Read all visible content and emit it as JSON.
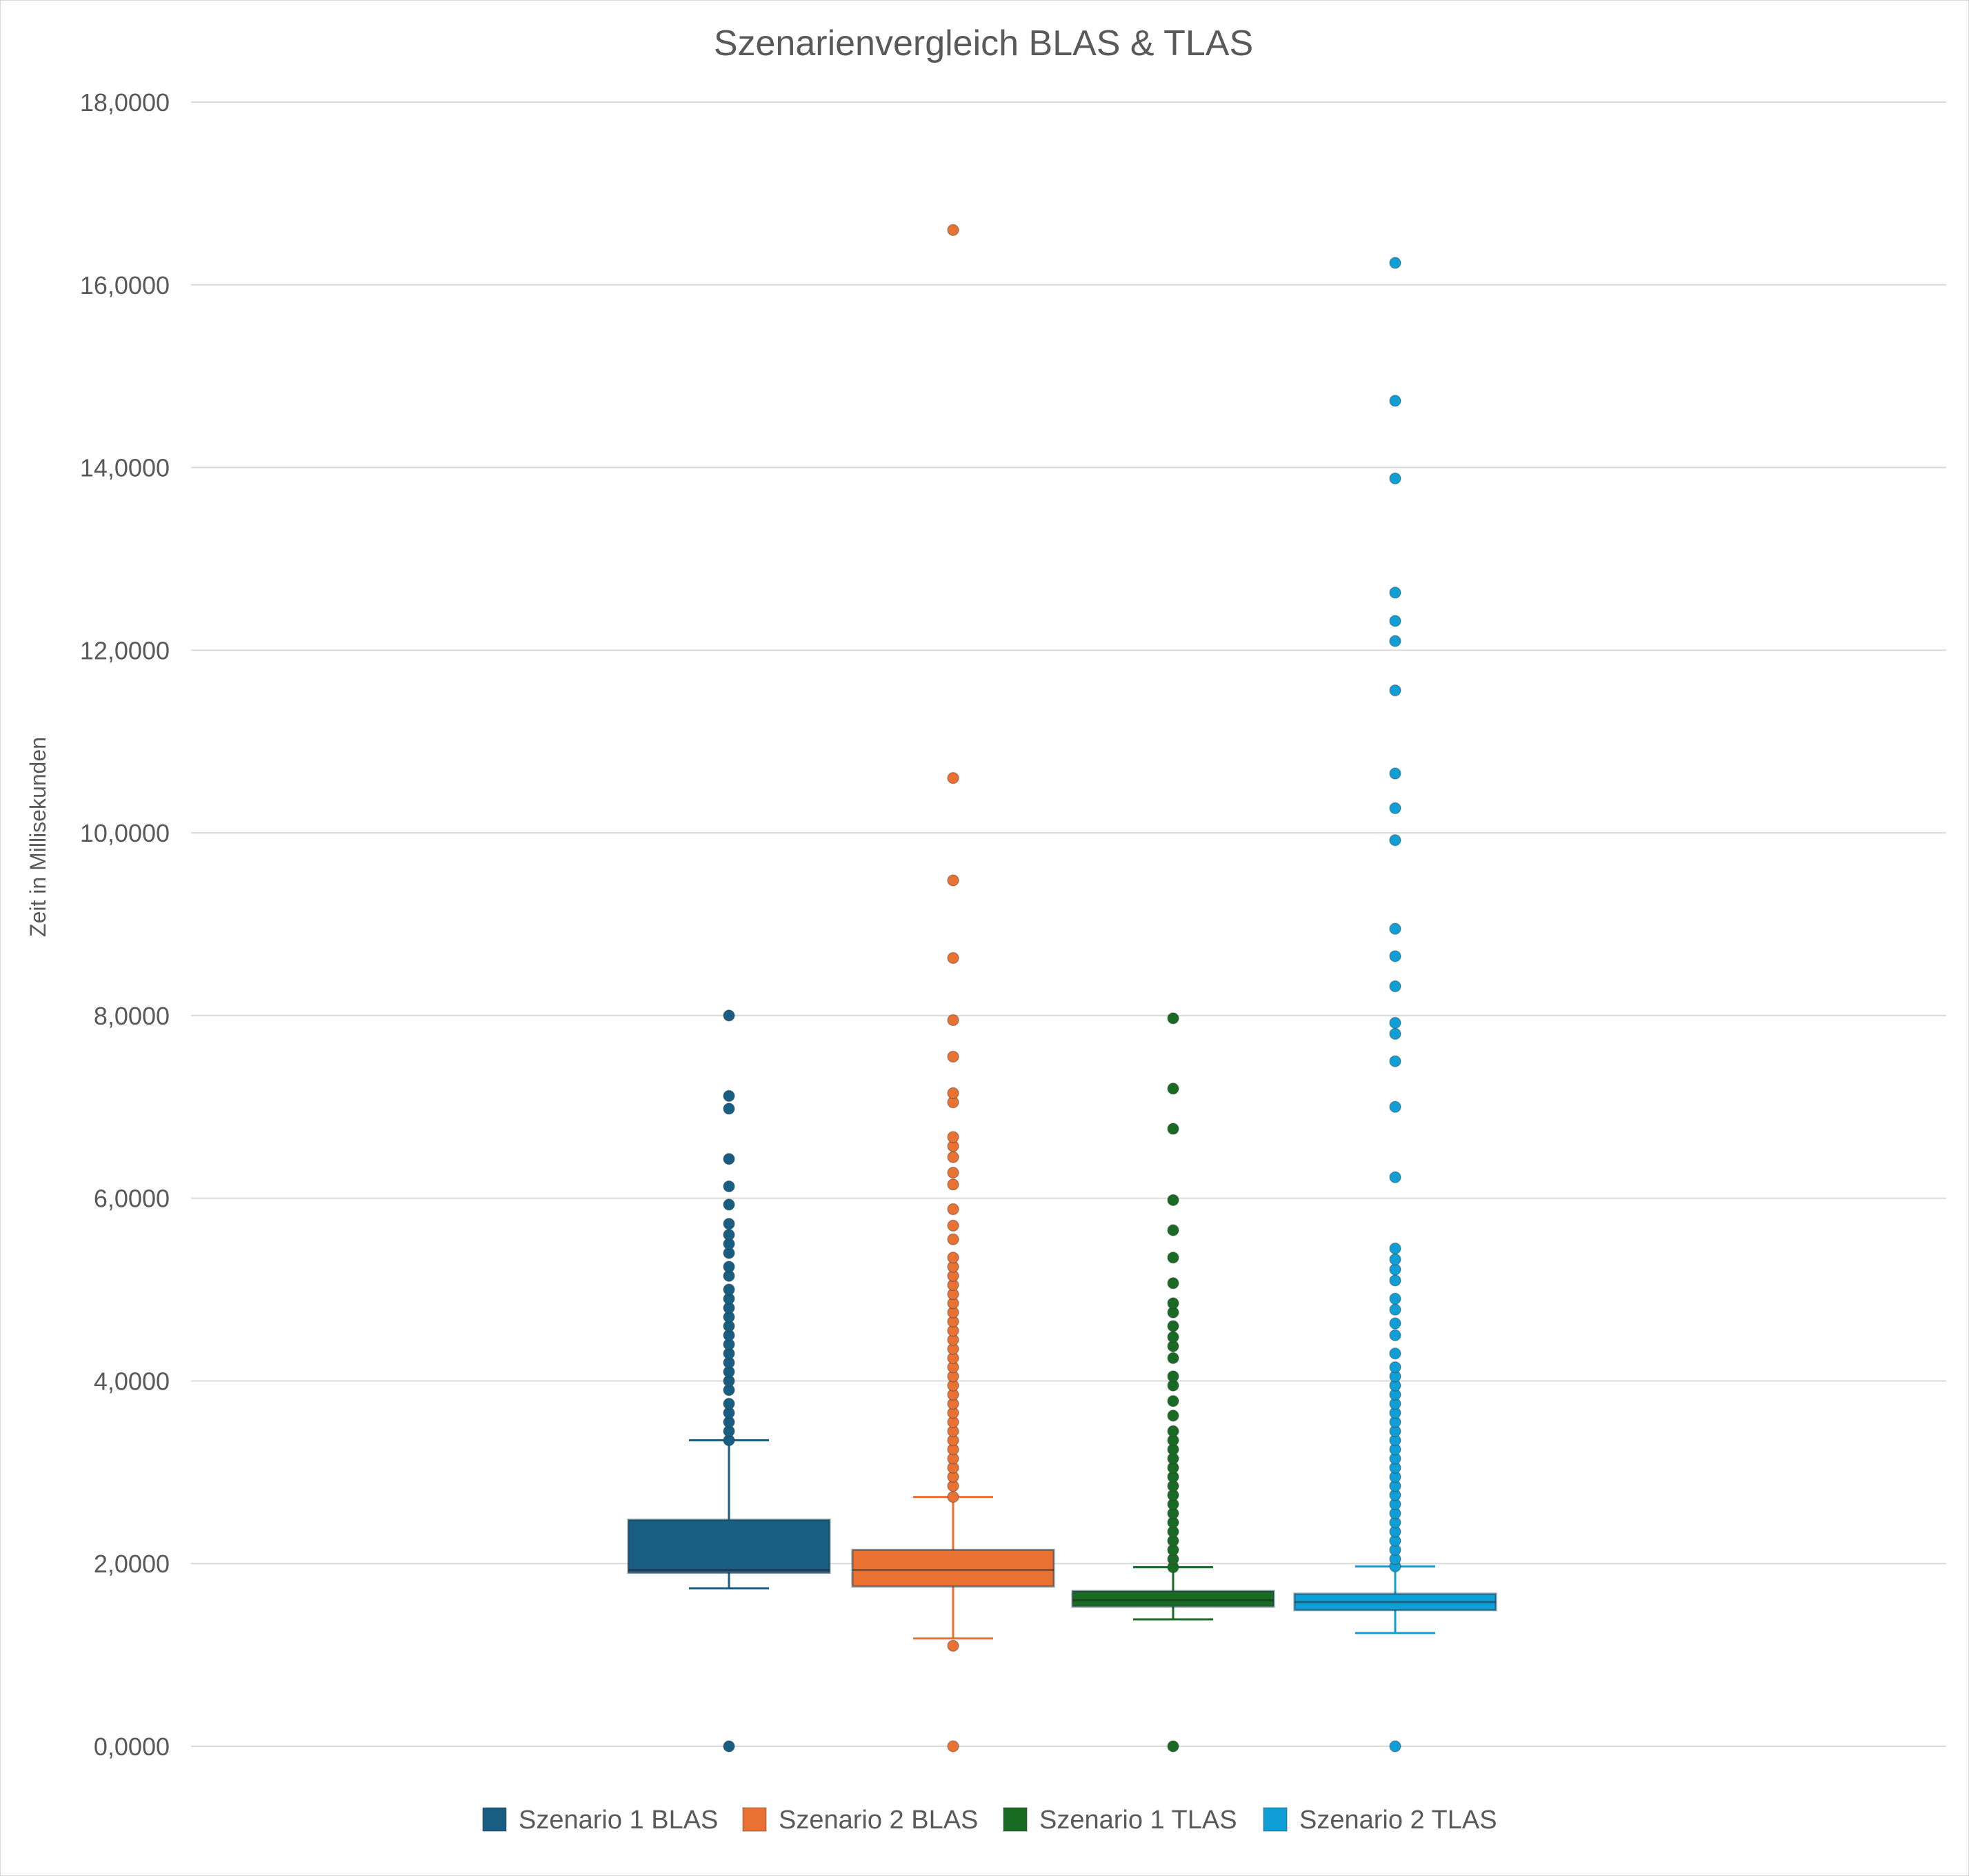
{
  "chart_data": {
    "type": "boxplot",
    "title": "Szenarienvergleich BLAS & TLAS",
    "xlabel": "",
    "ylabel": "Zeit in Millisekunden",
    "ylim": [
      0,
      18
    ],
    "yticks": [
      "0,0000",
      "2,0000",
      "4,0000",
      "6,0000",
      "8,0000",
      "10,0000",
      "12,0000",
      "14,0000",
      "16,0000",
      "18,0000"
    ],
    "ytick_values": [
      0,
      2,
      4,
      6,
      8,
      10,
      12,
      14,
      16,
      18
    ],
    "grid": true,
    "legend_position": "bottom",
    "series": [
      {
        "name": "Szenario 1 BLAS",
        "color": "#175E82",
        "whisker_low": 1.73,
        "q1": 1.9,
        "median": 1.93,
        "q3": 2.48,
        "whisker_high": 3.35,
        "outliers": [
          0.0,
          3.35,
          3.45,
          3.55,
          3.65,
          3.75,
          3.9,
          4.0,
          4.1,
          4.2,
          4.3,
          4.4,
          4.5,
          4.6,
          4.7,
          4.8,
          4.9,
          5.0,
          5.15,
          5.25,
          5.4,
          5.5,
          5.6,
          5.72,
          5.93,
          6.13,
          6.43,
          6.98,
          7.12,
          8.0
        ]
      },
      {
        "name": "Szenario 2 BLAS",
        "color": "#E97132",
        "whisker_low": 1.18,
        "q1": 1.75,
        "median": 1.93,
        "q3": 2.15,
        "whisker_high": 2.73,
        "outliers": [
          0.0,
          1.1,
          2.73,
          2.85,
          2.95,
          3.05,
          3.15,
          3.25,
          3.35,
          3.45,
          3.55,
          3.65,
          3.75,
          3.85,
          3.95,
          4.05,
          4.15,
          4.25,
          4.35,
          4.45,
          4.55,
          4.65,
          4.75,
          4.85,
          4.95,
          5.05,
          5.15,
          5.25,
          5.35,
          5.55,
          5.7,
          5.88,
          6.15,
          6.28,
          6.45,
          6.57,
          6.67,
          7.05,
          7.15,
          7.55,
          7.95,
          8.63,
          9.48,
          10.6,
          16.6
        ]
      },
      {
        "name": "Szenario 1 TLAS",
        "color": "#196B24",
        "whisker_low": 1.39,
        "q1": 1.53,
        "median": 1.6,
        "q3": 1.7,
        "whisker_high": 1.96,
        "outliers": [
          0.0,
          1.96,
          2.05,
          2.15,
          2.25,
          2.35,
          2.45,
          2.55,
          2.65,
          2.75,
          2.85,
          2.95,
          3.05,
          3.15,
          3.25,
          3.35,
          3.45,
          3.62,
          3.78,
          3.95,
          4.05,
          4.25,
          4.38,
          4.48,
          4.6,
          4.75,
          4.85,
          5.07,
          5.35,
          5.65,
          5.98,
          6.76,
          7.2,
          7.97
        ]
      },
      {
        "name": "Szenario 2 TLAS",
        "color": "#0F9ED5",
        "whisker_low": 1.24,
        "q1": 1.49,
        "median": 1.58,
        "q3": 1.67,
        "whisker_high": 1.97,
        "outliers": [
          0.0,
          1.97,
          2.05,
          2.15,
          2.25,
          2.35,
          2.45,
          2.55,
          2.65,
          2.75,
          2.85,
          2.95,
          3.05,
          3.15,
          3.25,
          3.35,
          3.45,
          3.55,
          3.65,
          3.75,
          3.85,
          3.95,
          4.05,
          4.15,
          4.3,
          4.5,
          4.63,
          4.78,
          4.9,
          5.1,
          5.22,
          5.33,
          5.45,
          6.23,
          7.0,
          7.5,
          7.8,
          7.92,
          8.32,
          8.65,
          8.95,
          9.92,
          10.27,
          10.65,
          11.56,
          12.1,
          12.32,
          12.63,
          13.88,
          14.73,
          16.24
        ]
      }
    ]
  }
}
